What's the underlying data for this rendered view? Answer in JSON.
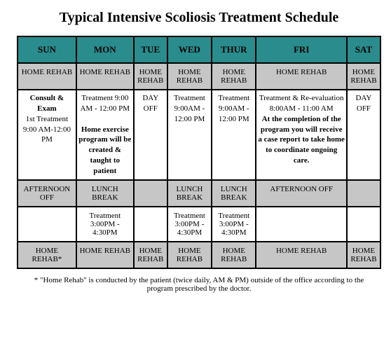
{
  "title": "Typical Intensive Scoliosis Treatment Schedule",
  "days": [
    "SUN",
    "MON",
    "TUE",
    "WED",
    "THUR",
    "FRI",
    "SAT"
  ],
  "row_rehab_top": [
    "HOME REHAB",
    "HOME REHAB",
    "HOME REHAB",
    "HOME REHAB",
    "HOME REHAB",
    "HOME REHAB",
    "HOME REHAB"
  ],
  "row_morning": {
    "sun_bold": "Consult & Exam",
    "sun_rest": "1st Treatment\n9:00 AM-12:00 PM",
    "mon_time": "Treatment 9:00 AM - 12:00 PM",
    "mon_bold": "Home exercise program will be created & taught to patient",
    "tue": "DAY OFF",
    "wed": "Treatment 9:00AM - 12:00 PM",
    "thu": "Treatment 9:00AM - 12:00 PM",
    "fri_time": "Treatment & Re-evaluation 8:00AM - 11:00 AM",
    "fri_bold": "At the completion of the program you will receive a case report to take home to coordinate ongoing care.",
    "sat": "DAY OFF"
  },
  "row_lunch": [
    "AFTERNOON OFF",
    "LUNCH BREAK",
    "",
    "LUNCH BREAK",
    "LUNCH BREAK",
    "AFTERNOON OFF",
    ""
  ],
  "row_afternoon": [
    "",
    "Treatment 3:00PM - 4:30PM",
    "",
    "Treatment 3:00PM - 4:30PM",
    "Treatment 3:00PM - 4:30PM",
    "",
    ""
  ],
  "row_rehab_bottom": [
    "HOME REHAB*",
    "HOME REHAB",
    "HOME REHAB",
    "HOME REHAB",
    "HOME REHAB",
    "HOME REHAB",
    "HOME REHAB"
  ],
  "footnote": "* \"Home Rehab\" is conducted by the patient (twice daily, AM & PM) outside of the office according to the program prescribed by the doctor.",
  "colors": {
    "header_bg": "#2a8c8c",
    "gray_bg": "#c6c6c6",
    "border": "#000000"
  }
}
